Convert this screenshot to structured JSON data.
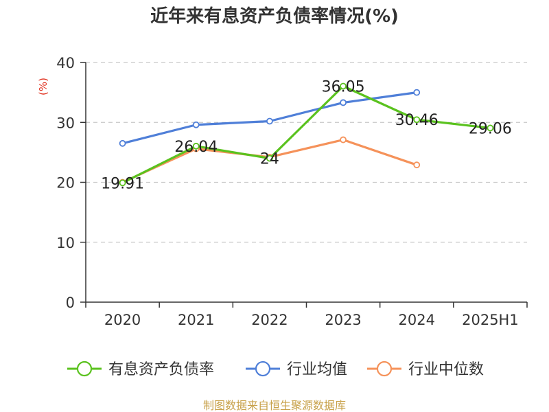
{
  "chart_data": {
    "type": "line",
    "title": "近年来有息资产负债率情况(%)",
    "unit_label": "(%)",
    "categories": [
      "2020",
      "2021",
      "2022",
      "2023",
      "2024",
      "2025H1"
    ],
    "ylim": [
      0,
      40
    ],
    "yticks": [
      0,
      10,
      20,
      30,
      40
    ],
    "grid": true,
    "legend_position": "bottom",
    "series": [
      {
        "name": "有息资产负债率",
        "color": "#5ac21e",
        "values": [
          19.91,
          26.04,
          24,
          36.05,
          30.46,
          29.06
        ],
        "labels": [
          "19.91",
          "26.04",
          "24",
          "36.05",
          "30.46",
          "29.06"
        ]
      },
      {
        "name": "行业均值",
        "color": "#4f7fd8",
        "values": [
          26.5,
          29.6,
          30.2,
          33.3,
          35.0,
          null
        ]
      },
      {
        "name": "行业中位数",
        "color": "#f5925a",
        "values": [
          20.0,
          25.6,
          24.2,
          27.1,
          22.9,
          null
        ]
      }
    ],
    "source": "制图数据来自恒生聚源数据库"
  }
}
